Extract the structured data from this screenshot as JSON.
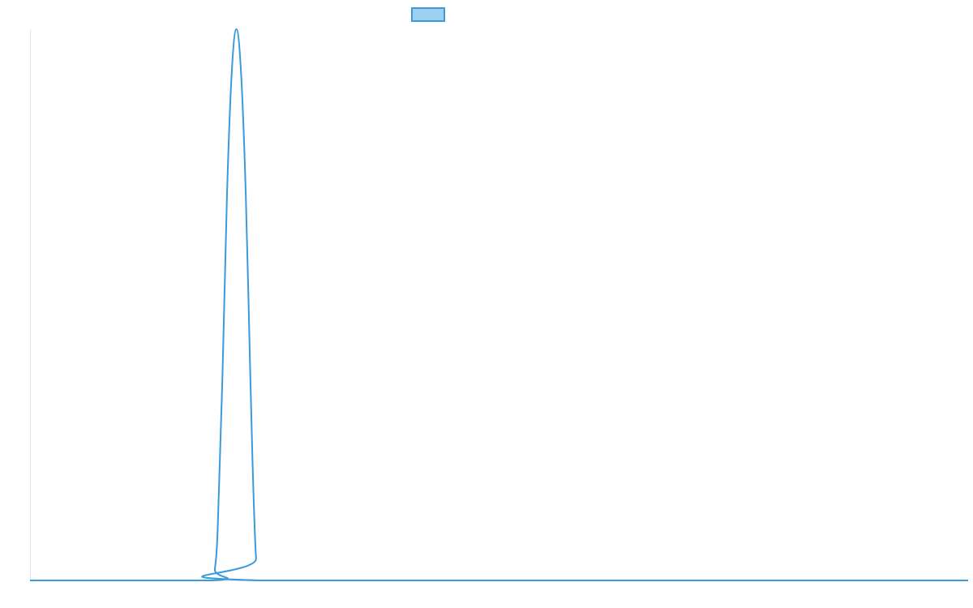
{
  "chart_data": {
    "type": "line",
    "title": "",
    "xlabel": "",
    "ylabel": "",
    "x_range": [
      0,
      100
    ],
    "y_range": [
      0,
      1
    ],
    "grid": false,
    "legend": "top-center",
    "series": [
      {
        "color": "#3a9bdc",
        "legend_fill": "#9fd0f2",
        "x": [
          0,
          19.5,
          19.7,
          20,
          20.5,
          21,
          21.5,
          22,
          22.5,
          23,
          23.5,
          23.8,
          24.1,
          24.5,
          100
        ],
        "y": [
          0,
          0,
          0.02,
          0.09,
          0.36,
          0.7,
          0.92,
          1.0,
          0.92,
          0.7,
          0.36,
          0.17,
          0.04,
          0,
          0
        ]
      }
    ]
  }
}
